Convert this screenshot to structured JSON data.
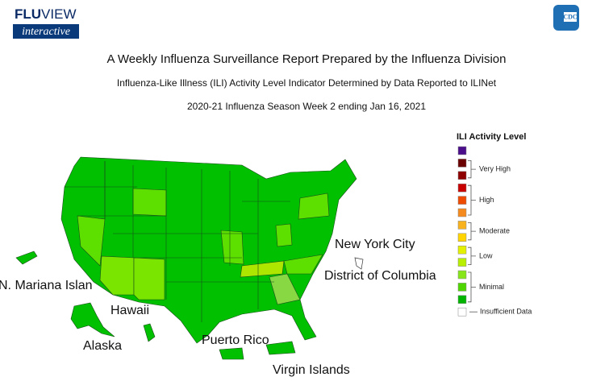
{
  "header": {
    "logo": {
      "brand_bold": "FLU",
      "brand_light": "VIEW",
      "tagline": "interactive"
    },
    "agency": "CDC"
  },
  "title": "A Weekly Influenza Surveillance Report Prepared by the Influenza Division",
  "subtitle": "Influenza-Like Illness (ILI) Activity Level Indicator Determined by Data Reported to ILINet",
  "season": "2020-21 Influenza Season Week 2 ending Jan 16, 2021",
  "legend": {
    "title": "ILI Activity Level",
    "groups": [
      {
        "colors": [
          "#4b0f8c"
        ]
      },
      {
        "label": "Very High",
        "colors": [
          "#6b0000",
          "#8f0000"
        ]
      },
      {
        "label": "High",
        "colors": [
          "#c80000",
          "#ee4a00",
          "#f58a1e"
        ]
      },
      {
        "label": "Moderate",
        "colors": [
          "#f7b21e",
          "#ffd400"
        ]
      },
      {
        "label": "Low",
        "colors": [
          "#e3f000",
          "#b8ee00"
        ]
      },
      {
        "label": "Minimal",
        "colors": [
          "#86e61a",
          "#4fd600",
          "#00b400"
        ]
      }
    ],
    "insufficient": {
      "label": "Insufficient Data",
      "color": "#ffffff"
    }
  },
  "map_labels": [
    "New York City",
    "District of Columbia",
    "N. Mariana Islan",
    "Hawaii",
    "Alaska",
    "Puerto Rico",
    "Virgin Islands"
  ]
}
